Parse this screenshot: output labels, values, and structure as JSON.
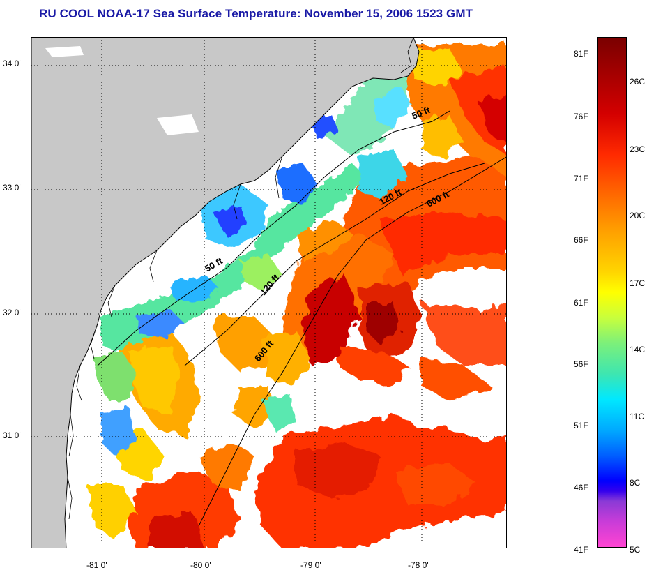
{
  "title": "RU COOL  NOAA-17  Sea Surface Temperature:  November 15, 2006 1523 GMT",
  "axes": {
    "lat_labels": [
      "34 0'",
      "33 0'",
      "32 0'",
      "31 0'"
    ],
    "lon_labels": [
      "-81 0'",
      "-80 0'",
      "-79 0'",
      "-78 0'"
    ]
  },
  "isobaths": [
    {
      "label": "50 ft",
      "depth_ft": 50
    },
    {
      "label": "50 ft",
      "depth_ft": 50
    },
    {
      "label": "120 ft",
      "depth_ft": 120
    },
    {
      "label": "120 ft",
      "depth_ft": 120
    },
    {
      "label": "600 ft",
      "depth_ft": 600
    },
    {
      "label": "600 ft",
      "depth_ft": 600
    }
  ],
  "colorbar": {
    "fahrenheit": [
      "81F",
      "76F",
      "71F",
      "66F",
      "61F",
      "56F",
      "51F",
      "46F",
      "41F"
    ],
    "celsius": [
      "26C",
      "23C",
      "20C",
      "17C",
      "14C",
      "11C",
      "8C",
      "5C"
    ]
  },
  "colors": {
    "land": "#c8c8c8",
    "title": "#1a1aa6",
    "grid": "#000000"
  }
}
